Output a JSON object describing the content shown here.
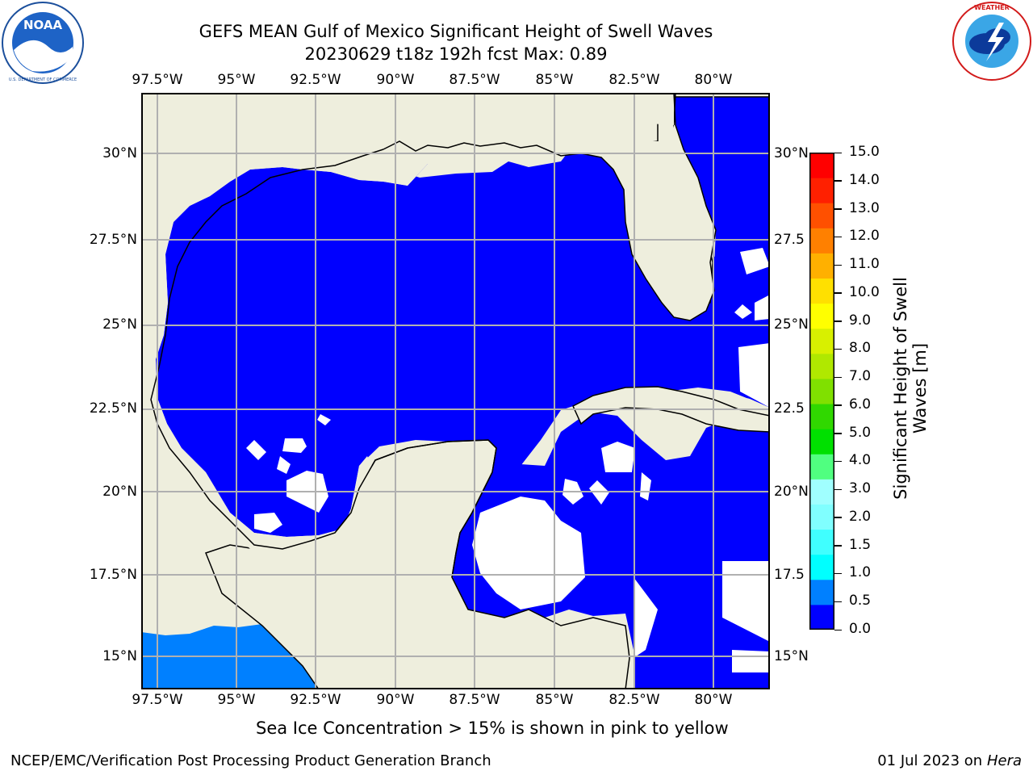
{
  "title": {
    "line1": "GEFS MEAN Gulf of Mexico Significant Height of Swell Waves",
    "line2": "20230629 t18z 192h fcst   Max: 0.89"
  },
  "axes": {
    "lon_labels": [
      "97.5°W",
      "95°W",
      "92.5°W",
      "90°W",
      "87.5°W",
      "85°W",
      "82.5°W",
      "80°W"
    ],
    "lat_labels": [
      "30°N",
      "27.5°N",
      "25°N",
      "22.5°N",
      "20°N",
      "17.5°N",
      "15°N"
    ],
    "lat_labels_right": [
      "30°N",
      "27.5",
      "25°N",
      "22.5",
      "20°N",
      "17.5",
      "15°N"
    ]
  },
  "colorbar": {
    "title": "Significant Height of Swell Waves [m]",
    "title_line1": "Significant Height of Swell",
    "title_line2": "Waves [m]",
    "ticks": [
      "15.0",
      "14.0",
      "13.0",
      "12.0",
      "11.0",
      "10.0",
      "9.0",
      "8.0",
      "7.0",
      "6.0",
      "5.0",
      "4.0",
      "3.0",
      "2.0",
      "1.5",
      "1.0",
      "0.5",
      "0.0"
    ],
    "colors": [
      "#0000ff",
      "#0080ff",
      "#00ffff",
      "#40ffff",
      "#80ffff",
      "#a0ffff",
      "#50ff80",
      "#00e000",
      "#30d800",
      "#80e000",
      "#b0e800",
      "#d8f000",
      "#ffff00",
      "#ffe000",
      "#ffb000",
      "#ff8000",
      "#ff5000",
      "#ff2000",
      "#ff0000"
    ]
  },
  "chart_data": {
    "type": "heatmap",
    "title": "GEFS MEAN Gulf of Mexico Significant Height of Swell Waves",
    "subtitle": "20230629 t18z 192h fcst   Max: 0.89",
    "xlabel": "",
    "ylabel": "",
    "lon_range": [
      -98.0,
      -78.25
    ],
    "lat_range": [
      14.0,
      31.85
    ],
    "max_value": 0.89,
    "units": "m",
    "color_levels": [
      0.0,
      0.5,
      1.0,
      1.5,
      2.0,
      3.0,
      4.0,
      5.0,
      6.0,
      7.0,
      8.0,
      9.0,
      10.0,
      11.0,
      12.0,
      13.0,
      14.0,
      15.0
    ],
    "grid": true,
    "dominant_range_m": "0.0-0.5"
  },
  "logos": {
    "noaa_text": "NOAA",
    "noaa_ring": "NATIONAL OCEANIC AND ATMOSPHERIC ADMINISTRATION",
    "noaa_ring_bottom": "U.S. DEPARTMENT OF COMMERCE",
    "nws_ring": "NATIONAL WEATHER SERVICE"
  },
  "caption": "Sea Ice Concentration > 15% is shown in pink to yellow",
  "footer": {
    "left": "NCEP/EMC/Verification Post Processing Product Generation Branch",
    "right_prefix": "01 Jul 2023 on ",
    "right_host": "Hera"
  },
  "colors": {
    "land": "#eeeedd",
    "ocean": "#0000ff",
    "grid": "#b0b0b0"
  }
}
